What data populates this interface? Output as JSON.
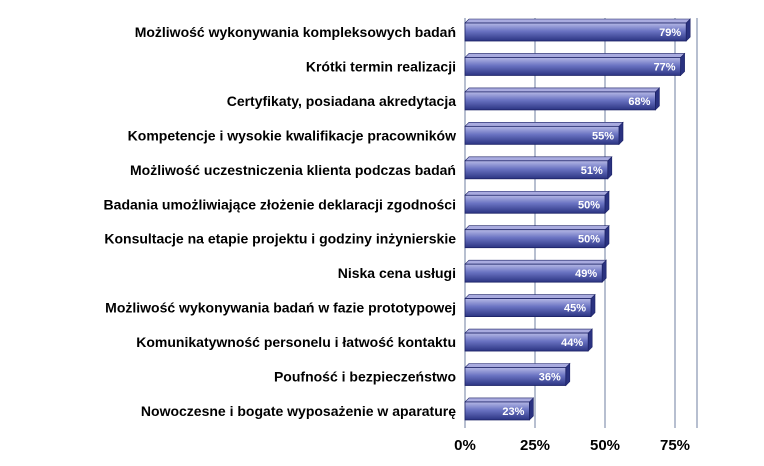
{
  "chart_data": {
    "type": "bar",
    "orientation": "horizontal",
    "categories": [
      "Możliwość wykonywania kompleksowych badań",
      "Krótki termin realizacji",
      "Certyfikaty, posiadana akredytacja",
      "Kompetencje i wysokie kwalifikacje pracowników",
      "Możliwość uczestniczenia klienta podczas badań",
      "Badania umożliwiające złożenie deklaracji zgodności",
      "Konsultacje na etapie projektu i godziny inżynierskie",
      "Niska cena usługi",
      "Możliwość wykonywania badań w fazie prototypowej",
      "Komunikatywność personelu i łatwość kontaktu",
      "Poufność i bezpieczeństwo",
      "Nowoczesne i bogate wyposażenie w aparaturę"
    ],
    "values": [
      79,
      77,
      68,
      55,
      51,
      50,
      50,
      49,
      45,
      44,
      36,
      23
    ],
    "value_labels": [
      "79%",
      "77%",
      "68%",
      "55%",
      "51%",
      "50%",
      "50%",
      "49%",
      "45%",
      "44%",
      "36%",
      "23%"
    ],
    "xticks": [
      0,
      25,
      50,
      75
    ],
    "xtick_labels": [
      "0%",
      "25%",
      "50%",
      "75%"
    ],
    "xlim": [
      0,
      80
    ],
    "grid": "vertical",
    "colors": {
      "bar_light": "#a9abdf",
      "bar_mid": "#5a64b8",
      "bar_dark": "#2a3280",
      "bar_edge": "#1c2266",
      "grid": "#6f7fa0"
    }
  }
}
